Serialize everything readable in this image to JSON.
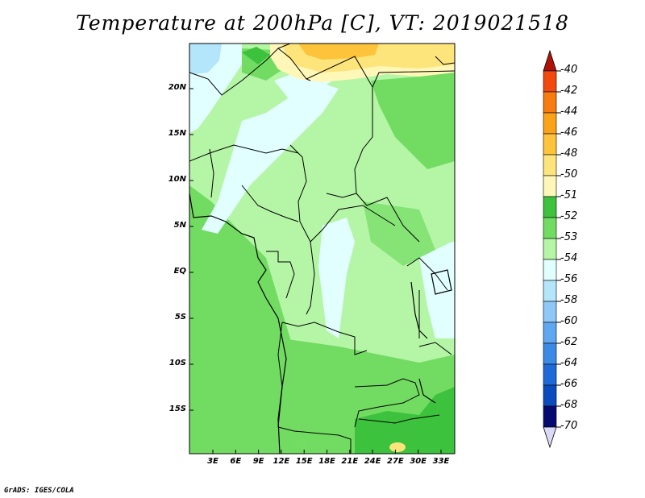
{
  "title": "Temperature at 200hPa [C], VT: 2019021518",
  "credit": "GrADS: IGES/COLA",
  "map": {
    "lat_labels": [
      "20N",
      "15N",
      "10N",
      "5N",
      "EQ",
      "5S",
      "10S",
      "15S"
    ],
    "lon_labels": [
      "3E",
      "6E",
      "9E",
      "12E",
      "15E",
      "18E",
      "21E",
      "24E",
      "27E",
      "30E",
      "33E"
    ]
  },
  "colorbar": {
    "labels": [
      "-40",
      "-42",
      "-44",
      "-46",
      "-48",
      "-50",
      "-51",
      "-52",
      "-53",
      "-54",
      "-56",
      "-58",
      "-60",
      "-62",
      "-64",
      "-66",
      "-68",
      "-70"
    ],
    "colors": [
      "#d9170b",
      "#f24a0d",
      "#f77b0f",
      "#fca218",
      "#fdc33a",
      "#fde57c",
      "#fff7b8",
      "#3cc23c",
      "#72dc62",
      "#b5f5a6",
      "#e1ffff",
      "#b4e6fb",
      "#8dc8f6",
      "#5fa7f0",
      "#3a8ae6",
      "#1f6ad9",
      "#0a4bbd",
      "#050a70"
    ],
    "top_arrow_color": "#b01208",
    "bottom_arrow_color": "#dad9f7"
  }
}
